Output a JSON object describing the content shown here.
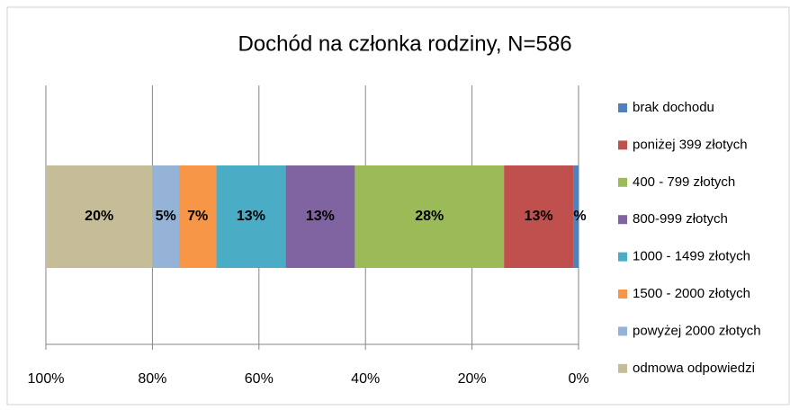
{
  "chart_data": {
    "type": "stacked-bar-horizontal",
    "title": "Dochód na członka rodziny, N=586",
    "xlim": [
      100,
      0
    ],
    "xticks": [
      {
        "value": 100,
        "label": "100%"
      },
      {
        "value": 80,
        "label": "80%"
      },
      {
        "value": 60,
        "label": "60%"
      },
      {
        "value": 40,
        "label": "40%"
      },
      {
        "value": 20,
        "label": "20%"
      },
      {
        "value": 0,
        "label": "0%"
      }
    ],
    "grid": true,
    "legend": "right",
    "series": [
      {
        "name": "brak dochodu",
        "color": "#4f81bd",
        "values": [
          1
        ],
        "value_labels": [
          "1%"
        ]
      },
      {
        "name": "poniżej 399 złotych",
        "color": "#c0504d",
        "values": [
          13
        ],
        "value_labels": [
          "13%"
        ]
      },
      {
        "name": "400 - 799 złotych",
        "color": "#9bbb59",
        "values": [
          28
        ],
        "value_labels": [
          "28%"
        ]
      },
      {
        "name": "800-999 złotych",
        "color": "#8064a2",
        "values": [
          13
        ],
        "value_labels": [
          "13%"
        ]
      },
      {
        "name": "1000 - 1499 złotych",
        "color": "#4bacc6",
        "values": [
          13
        ],
        "value_labels": [
          "13%"
        ]
      },
      {
        "name": "1500 - 2000 złotych",
        "color": "#f79646",
        "values": [
          7
        ],
        "value_labels": [
          "7%"
        ]
      },
      {
        "name": "powyżej 2000 złotych",
        "color": "#95b3d7",
        "values": [
          5
        ],
        "value_labels": [
          "5%"
        ]
      },
      {
        "name": "odmowa odpowiedzi",
        "color": "#c4bd97",
        "values": [
          20
        ],
        "value_labels": [
          "20%"
        ]
      }
    ]
  }
}
